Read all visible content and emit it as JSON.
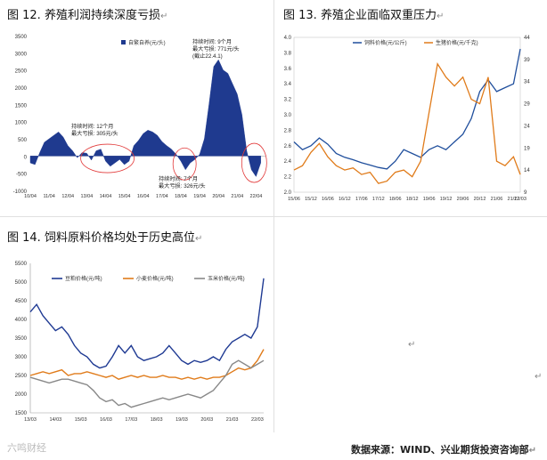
{
  "return_mark": "↵",
  "fig12": {
    "title": "图 12. 养殖利润持续深度亏损",
    "chart_data": {
      "type": "area",
      "legend": [
        "自繁自养(元/头)"
      ],
      "yticks": [
        3500,
        3000,
        2500,
        2000,
        1500,
        1000,
        500,
        0,
        -500,
        -1000
      ],
      "ylim": [
        -1000,
        3500
      ],
      "xticks": [
        "10/04",
        "11/04",
        "12/04",
        "13/04",
        "14/04",
        "15/04",
        "16/04",
        "17/04",
        "18/04",
        "19/04",
        "20/04",
        "21/04",
        "22/04"
      ],
      "x": [
        2010.0,
        2010.25,
        2010.5,
        2010.75,
        2011.0,
        2011.25,
        2011.5,
        2011.75,
        2012.0,
        2012.25,
        2012.5,
        2012.75,
        2013.0,
        2013.25,
        2013.5,
        2013.75,
        2014.0,
        2014.25,
        2014.5,
        2014.75,
        2015.0,
        2015.25,
        2015.5,
        2015.75,
        2016.0,
        2016.25,
        2016.5,
        2016.75,
        2017.0,
        2017.25,
        2017.5,
        2017.75,
        2018.0,
        2018.25,
        2018.5,
        2018.75,
        2019.0,
        2019.25,
        2019.5,
        2019.75,
        2020.0,
        2020.25,
        2020.5,
        2020.75,
        2021.0,
        2021.25,
        2021.5,
        2021.75,
        2022.0,
        2022.25
      ],
      "values": [
        -200,
        -250,
        100,
        400,
        500,
        600,
        700,
        550,
        300,
        150,
        -50,
        100,
        80,
        -120,
        150,
        200,
        -150,
        -300,
        -200,
        -100,
        -250,
        -150,
        300,
        450,
        650,
        750,
        700,
        600,
        420,
        300,
        200,
        50,
        -150,
        -400,
        -200,
        -100,
        50,
        500,
        1500,
        2600,
        2800,
        2500,
        2400,
        2100,
        1800,
        1200,
        150,
        -400,
        -600,
        -200
      ],
      "annotations": [
        {
          "lines": [
            "持续时间: 12个月",
            "最大亏损: 305元/头"
          ]
        },
        {
          "lines": [
            "持续时间: 7个月",
            "最大亏损: 326元/头"
          ]
        },
        {
          "lines": [
            "持续时间: 9个月",
            "最大亏损: 771元/头",
            "(截止22.4.1)"
          ]
        }
      ]
    }
  },
  "fig13": {
    "title": "图 13. 养殖企业面临双重压力",
    "chart_data": {
      "type": "line",
      "x": [
        2015.5,
        2015.75,
        2016.0,
        2016.25,
        2016.5,
        2016.75,
        2017.0,
        2017.25,
        2017.5,
        2017.75,
        2018.0,
        2018.25,
        2018.5,
        2018.75,
        2019.0,
        2019.25,
        2019.5,
        2019.75,
        2020.0,
        2020.25,
        2020.5,
        2020.75,
        2021.0,
        2021.25,
        2021.5,
        2021.75,
        2022.0,
        2022.2
      ],
      "series": [
        {
          "name": "饲料价格(元/公斤)",
          "axis": "left",
          "color": "#1f4e9c",
          "values": [
            2.65,
            2.55,
            2.6,
            2.7,
            2.62,
            2.5,
            2.45,
            2.42,
            2.38,
            2.35,
            2.32,
            2.3,
            2.4,
            2.55,
            2.5,
            2.45,
            2.55,
            2.6,
            2.55,
            2.65,
            2.75,
            2.95,
            3.3,
            3.45,
            3.3,
            3.35,
            3.4,
            3.85
          ]
        },
        {
          "name": "生猪价格(元/千克)",
          "axis": "right",
          "color": "#e07b1a",
          "values": [
            14,
            15,
            18,
            20,
            17,
            15,
            14,
            14.5,
            13,
            13.5,
            11,
            11.5,
            13.5,
            14,
            12.5,
            16,
            27,
            38,
            35,
            33,
            35,
            30,
            29,
            35,
            16,
            15,
            17,
            13
          ]
        }
      ],
      "left_ticks": [
        4.0,
        3.8,
        3.6,
        3.4,
        3.2,
        3.0,
        2.8,
        2.6,
        2.4,
        2.2,
        2.0
      ],
      "left_ylim": [
        2.0,
        4.0
      ],
      "right_ticks": [
        44,
        39,
        34,
        29,
        24,
        19,
        14,
        9
      ],
      "right_ylim": [
        9,
        44
      ],
      "xticks": [
        "15/06",
        "15/12",
        "16/06",
        "16/12",
        "17/06",
        "17/12",
        "18/06",
        "18/12",
        "19/06",
        "19/12",
        "20/06",
        "20/12",
        "21/06",
        "21/12",
        "22/03"
      ],
      "xtick_values": [
        2015.5,
        2016.0,
        2016.5,
        2017.0,
        2017.5,
        2018.0,
        2018.5,
        2019.0,
        2019.5,
        2020.0,
        2020.5,
        2021.0,
        2021.5,
        2022.0,
        2022.2
      ]
    }
  },
  "fig14": {
    "title": "图 14. 饲料原料价格均处于历史高位",
    "chart_data": {
      "type": "line",
      "x": [
        2013.0,
        2013.25,
        2013.5,
        2013.75,
        2014.0,
        2014.25,
        2014.5,
        2014.75,
        2015.0,
        2015.25,
        2015.5,
        2015.75,
        2016.0,
        2016.25,
        2016.5,
        2016.75,
        2017.0,
        2017.25,
        2017.5,
        2017.75,
        2018.0,
        2018.25,
        2018.5,
        2018.75,
        2019.0,
        2019.25,
        2019.5,
        2019.75,
        2020.0,
        2020.25,
        2020.5,
        2020.75,
        2021.0,
        2021.25,
        2021.5,
        2021.75,
        2022.0,
        2022.25
      ],
      "series": [
        {
          "name": "豆粕价格(元/吨)",
          "color": "#1f3a93",
          "values": [
            4200,
            4400,
            4100,
            3900,
            3700,
            3800,
            3600,
            3300,
            3100,
            3000,
            2800,
            2700,
            2750,
            3000,
            3300,
            3100,
            3300,
            3000,
            2900,
            2950,
            3000,
            3100,
            3300,
            3100,
            2900,
            2800,
            2900,
            2850,
            2900,
            3000,
            2900,
            3200,
            3400,
            3500,
            3600,
            3500,
            3800,
            5100
          ]
        },
        {
          "name": "小麦价格(元/吨)",
          "color": "#e07b1a",
          "values": [
            2500,
            2550,
            2600,
            2550,
            2600,
            2650,
            2500,
            2550,
            2550,
            2600,
            2550,
            2500,
            2450,
            2500,
            2400,
            2450,
            2500,
            2450,
            2500,
            2450,
            2450,
            2500,
            2450,
            2450,
            2400,
            2450,
            2400,
            2450,
            2400,
            2450,
            2450,
            2500,
            2600,
            2700,
            2650,
            2700,
            2900,
            3200
          ]
        },
        {
          "name": "玉米价格(元/吨)",
          "color": "#888888",
          "values": [
            2450,
            2400,
            2350,
            2300,
            2350,
            2400,
            2400,
            2350,
            2300,
            2250,
            2100,
            1900,
            1800,
            1850,
            1700,
            1750,
            1650,
            1700,
            1750,
            1800,
            1850,
            1900,
            1850,
            1900,
            1950,
            2000,
            1950,
            1900,
            2000,
            2100,
            2300,
            2500,
            2800,
            2900,
            2800,
            2700,
            2800,
            2900
          ]
        }
      ],
      "yticks": [
        5500,
        5000,
        4500,
        4000,
        3500,
        3000,
        2500,
        2000,
        1500
      ],
      "ylim": [
        1500,
        5500
      ],
      "xticks": [
        "13/03",
        "14/03",
        "15/03",
        "16/03",
        "17/03",
        "18/03",
        "19/03",
        "20/03",
        "21/03",
        "22/03"
      ]
    }
  },
  "footer": "数据来源：WIND、兴业期货投资咨询部",
  "watermark": "六鸣财经"
}
